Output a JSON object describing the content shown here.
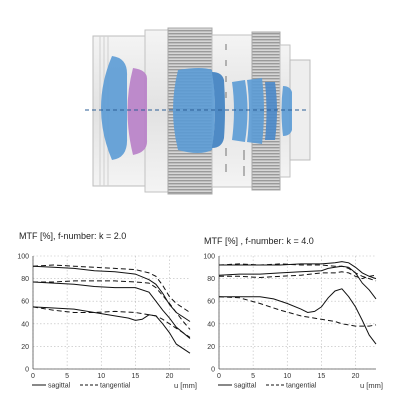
{
  "chart_data": [
    {
      "type": "line",
      "title": "MTF [%], f-number: k = 2.0",
      "xlabel": "u [mm]",
      "ylabel": "",
      "xlim": [
        0,
        23
      ],
      "ylim": [
        0,
        100
      ],
      "xticks": [
        "0",
        "5",
        "10",
        "15",
        "20"
      ],
      "yticks": [
        "0",
        "20",
        "40",
        "60",
        "80",
        "100"
      ],
      "grid": true,
      "legend": {
        "placement": "bottom",
        "entries": [
          "sagittal",
          "tangential"
        ]
      },
      "series": [
        {
          "name": "sagittal",
          "style": "solid",
          "x": [
            0,
            3,
            6,
            9,
            12,
            15,
            17,
            18,
            19,
            20,
            21,
            22,
            23
          ],
          "values": [
            91,
            90,
            89,
            87,
            86,
            84,
            79,
            75,
            67,
            57,
            50,
            46,
            42
          ]
        },
        {
          "name": "tangential",
          "style": "dashed",
          "x": [
            0,
            3,
            6,
            9,
            12,
            15,
            17,
            18,
            19,
            20,
            21,
            22,
            23
          ],
          "values": [
            91,
            92,
            91,
            90,
            89,
            88,
            85,
            82,
            74,
            64,
            58,
            54,
            50
          ]
        },
        {
          "name": "sagittal",
          "style": "solid",
          "x": [
            0,
            3,
            6,
            9,
            12,
            15,
            17,
            18,
            19,
            20,
            21,
            22,
            23
          ],
          "values": [
            77,
            76,
            75,
            73,
            72,
            72,
            68,
            60,
            52,
            45,
            37,
            32,
            27
          ]
        },
        {
          "name": "tangential",
          "style": "dashed",
          "x": [
            0,
            3,
            6,
            9,
            12,
            15,
            17,
            18,
            19,
            20,
            21,
            22,
            23
          ],
          "values": [
            77,
            77,
            78,
            78,
            78,
            77,
            76,
            72,
            65,
            58,
            50,
            42,
            35
          ]
        },
        {
          "name": "sagittal",
          "style": "solid",
          "x": [
            0,
            3,
            6,
            9,
            12,
            14,
            15,
            16,
            17,
            18,
            19,
            20,
            21,
            23
          ],
          "values": [
            55,
            54,
            53,
            50,
            47,
            45,
            43,
            44,
            48,
            47,
            40,
            32,
            22,
            14
          ]
        },
        {
          "name": "tangential",
          "style": "dashed",
          "x": [
            0,
            3,
            6,
            9,
            12,
            15,
            17,
            18,
            19,
            20,
            21,
            22,
            23
          ],
          "values": [
            55,
            52,
            50,
            50,
            51,
            50,
            48,
            47,
            44,
            40,
            36,
            32,
            28
          ]
        }
      ]
    },
    {
      "type": "line",
      "title": "MTF [%] , f-number: k = 4.0",
      "xlabel": "u [mm]",
      "ylabel": "",
      "xlim": [
        0,
        23
      ],
      "ylim": [
        0,
        100
      ],
      "xticks": [
        "0",
        "5",
        "10",
        "15",
        "20"
      ],
      "yticks": [
        "0",
        "20",
        "40",
        "60",
        "80",
        "100"
      ],
      "grid": true,
      "legend": {
        "placement": "bottom",
        "entries": [
          "sagittal",
          "tangential"
        ]
      },
      "series": [
        {
          "name": "sagittal",
          "style": "solid",
          "x": [
            0,
            3,
            6,
            9,
            12,
            15,
            17,
            18,
            19,
            20,
            21,
            22,
            23
          ],
          "values": [
            92,
            92,
            92,
            92,
            93,
            93,
            94,
            95,
            94,
            90,
            85,
            82,
            80
          ]
        },
        {
          "name": "tangential",
          "style": "dashed",
          "x": [
            0,
            3,
            6,
            9,
            12,
            15,
            17,
            18,
            19,
            20,
            21,
            22,
            23
          ],
          "values": [
            92,
            93,
            92,
            93,
            92,
            92,
            91,
            91,
            89,
            85,
            82,
            80,
            78
          ]
        },
        {
          "name": "sagittal",
          "style": "solid",
          "x": [
            0,
            3,
            6,
            9,
            12,
            15,
            16,
            17,
            18,
            19,
            20,
            21,
            22,
            23
          ],
          "values": [
            83,
            84,
            84,
            85,
            86,
            87,
            89,
            90,
            91,
            90,
            85,
            76,
            70,
            62
          ]
        },
        {
          "name": "tangential",
          "style": "dashed",
          "x": [
            0,
            3,
            6,
            9,
            12,
            15,
            17,
            18,
            19,
            20,
            21,
            22,
            23
          ],
          "values": [
            82,
            82,
            81,
            82,
            83,
            85,
            85,
            86,
            85,
            82,
            80,
            82,
            83
          ]
        },
        {
          "name": "sagittal",
          "style": "solid",
          "x": [
            0,
            3,
            6,
            8,
            10,
            12,
            13,
            14,
            15,
            16,
            17,
            18,
            19,
            20,
            21,
            22,
            23
          ],
          "values": [
            64,
            64,
            64,
            62,
            58,
            53,
            50,
            51,
            55,
            63,
            69,
            71,
            64,
            55,
            43,
            30,
            22
          ]
        },
        {
          "name": "tangential",
          "style": "dashed",
          "x": [
            0,
            3,
            6,
            9,
            12,
            15,
            17,
            18,
            19,
            20,
            21,
            22,
            23
          ],
          "values": [
            64,
            63,
            58,
            52,
            47,
            44,
            42,
            40,
            39,
            38,
            38,
            38,
            39
          ]
        }
      ]
    }
  ]
}
